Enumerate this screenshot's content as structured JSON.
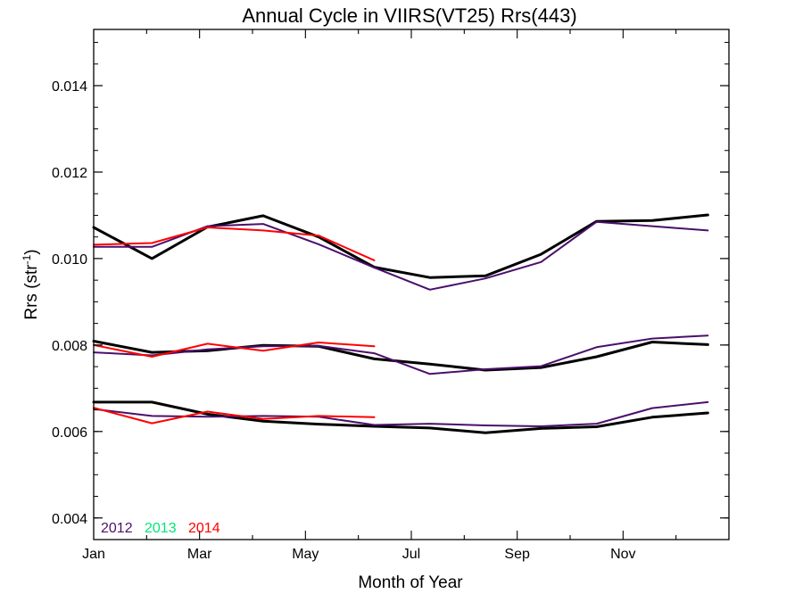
{
  "chart_data": {
    "type": "line",
    "title": "Annual Cycle in VIIRS(VT25) Rrs(443)",
    "xlabel": "Month of Year",
    "ylabel_main": "Rrs (str",
    "ylabel_sup": "-1",
    "ylabel_close": ")",
    "xlim": [
      1,
      13
    ],
    "ylim": [
      0.0035,
      0.0153
    ],
    "x_ticks": [
      {
        "value": 1,
        "label": "Jan"
      },
      {
        "value": 3,
        "label": "Mar"
      },
      {
        "value": 5,
        "label": "May"
      },
      {
        "value": 7,
        "label": "Jul"
      },
      {
        "value": 9,
        "label": "Sep"
      },
      {
        "value": 11,
        "label": "Nov"
      }
    ],
    "y_ticks": [
      {
        "value": 0.004,
        "label": "0.004"
      },
      {
        "value": 0.006,
        "label": "0.006"
      },
      {
        "value": 0.008,
        "label": "0.008"
      },
      {
        "value": 0.01,
        "label": "0.010"
      },
      {
        "value": 0.012,
        "label": "0.012"
      },
      {
        "value": 0.014,
        "label": "0.014"
      }
    ],
    "y_minor_step": 0.0005,
    "x_minor_step": 1,
    "legend": [
      {
        "name": "2012",
        "color": "#4b0f6b"
      },
      {
        "name": "2013",
        "color": "#00e676"
      },
      {
        "name": "2014",
        "color": "#ff0000"
      }
    ],
    "series": [
      {
        "group": "upper",
        "year": "climatology",
        "color": "#000000",
        "width": 3,
        "x": [
          1.0,
          2.1,
          3.15,
          4.2,
          5.25,
          6.3,
          7.35,
          8.4,
          9.45,
          10.5,
          11.55,
          12.6
        ],
        "y": [
          0.01072,
          0.01,
          0.01073,
          0.01099,
          0.0105,
          0.0098,
          0.00956,
          0.0096,
          0.0101,
          0.01086,
          0.01088,
          0.01101
        ]
      },
      {
        "group": "upper",
        "year": "2012",
        "color": "#4b0f6b",
        "width": 2,
        "x": [
          1.0,
          2.1,
          3.15,
          4.2,
          5.25,
          6.3,
          7.35,
          8.4,
          9.45,
          10.5,
          11.55,
          12.6
        ],
        "y": [
          0.01027,
          0.01027,
          0.01075,
          0.0108,
          0.01033,
          0.00979,
          0.00928,
          0.00954,
          0.00992,
          0.01085,
          0.01075,
          0.01065
        ]
      },
      {
        "group": "upper",
        "year": "2014",
        "color": "#ff0000",
        "width": 2,
        "x": [
          1.0,
          2.1,
          3.15,
          4.2,
          5.25,
          6.3
        ],
        "y": [
          0.01032,
          0.01036,
          0.01072,
          0.01065,
          0.01053,
          0.00996
        ]
      },
      {
        "group": "middle",
        "year": "climatology",
        "color": "#000000",
        "width": 3,
        "x": [
          1.0,
          2.1,
          3.15,
          4.2,
          5.25,
          6.3,
          7.35,
          8.4,
          9.45,
          10.5,
          11.55,
          12.6
        ],
        "y": [
          0.00809,
          0.00783,
          0.00787,
          0.00799,
          0.00797,
          0.00768,
          0.00756,
          0.00742,
          0.00748,
          0.00773,
          0.00807,
          0.00801
        ]
      },
      {
        "group": "middle",
        "year": "2012",
        "color": "#4b0f6b",
        "width": 2,
        "x": [
          1.0,
          2.1,
          3.15,
          4.2,
          5.25,
          6.3,
          7.35,
          8.4,
          9.45,
          10.5,
          11.55,
          12.6
        ],
        "y": [
          0.00783,
          0.00776,
          0.0079,
          0.00797,
          0.00798,
          0.00781,
          0.00733,
          0.00744,
          0.00751,
          0.00795,
          0.00815,
          0.00822
        ]
      },
      {
        "group": "middle",
        "year": "2014",
        "color": "#ff0000",
        "width": 2,
        "x": [
          1.0,
          2.1,
          3.15,
          4.2,
          5.25,
          6.3
        ],
        "y": [
          0.008,
          0.00773,
          0.00803,
          0.00787,
          0.00806,
          0.00797
        ]
      },
      {
        "group": "lower",
        "year": "climatology",
        "color": "#000000",
        "width": 3,
        "x": [
          1.0,
          2.1,
          3.15,
          4.2,
          5.25,
          6.3,
          7.35,
          8.4,
          9.45,
          10.5,
          11.55,
          12.6
        ],
        "y": [
          0.00668,
          0.00668,
          0.0064,
          0.00624,
          0.00617,
          0.00612,
          0.00608,
          0.00597,
          0.00607,
          0.00611,
          0.00633,
          0.00643
        ]
      },
      {
        "group": "lower",
        "year": "2012",
        "color": "#4b0f6b",
        "width": 2,
        "x": [
          1.0,
          2.1,
          3.15,
          4.2,
          5.25,
          6.3,
          7.35,
          8.4,
          9.45,
          10.5,
          11.55,
          12.6
        ],
        "y": [
          0.00652,
          0.00636,
          0.00634,
          0.00636,
          0.00634,
          0.00615,
          0.00618,
          0.00614,
          0.00612,
          0.00618,
          0.00654,
          0.00668
        ]
      },
      {
        "group": "lower",
        "year": "2014",
        "color": "#ff0000",
        "width": 2,
        "x": [
          1.0,
          2.1,
          3.15,
          4.2,
          5.25,
          6.3
        ],
        "y": [
          0.00655,
          0.00619,
          0.00646,
          0.00629,
          0.00636,
          0.00633
        ]
      }
    ]
  }
}
